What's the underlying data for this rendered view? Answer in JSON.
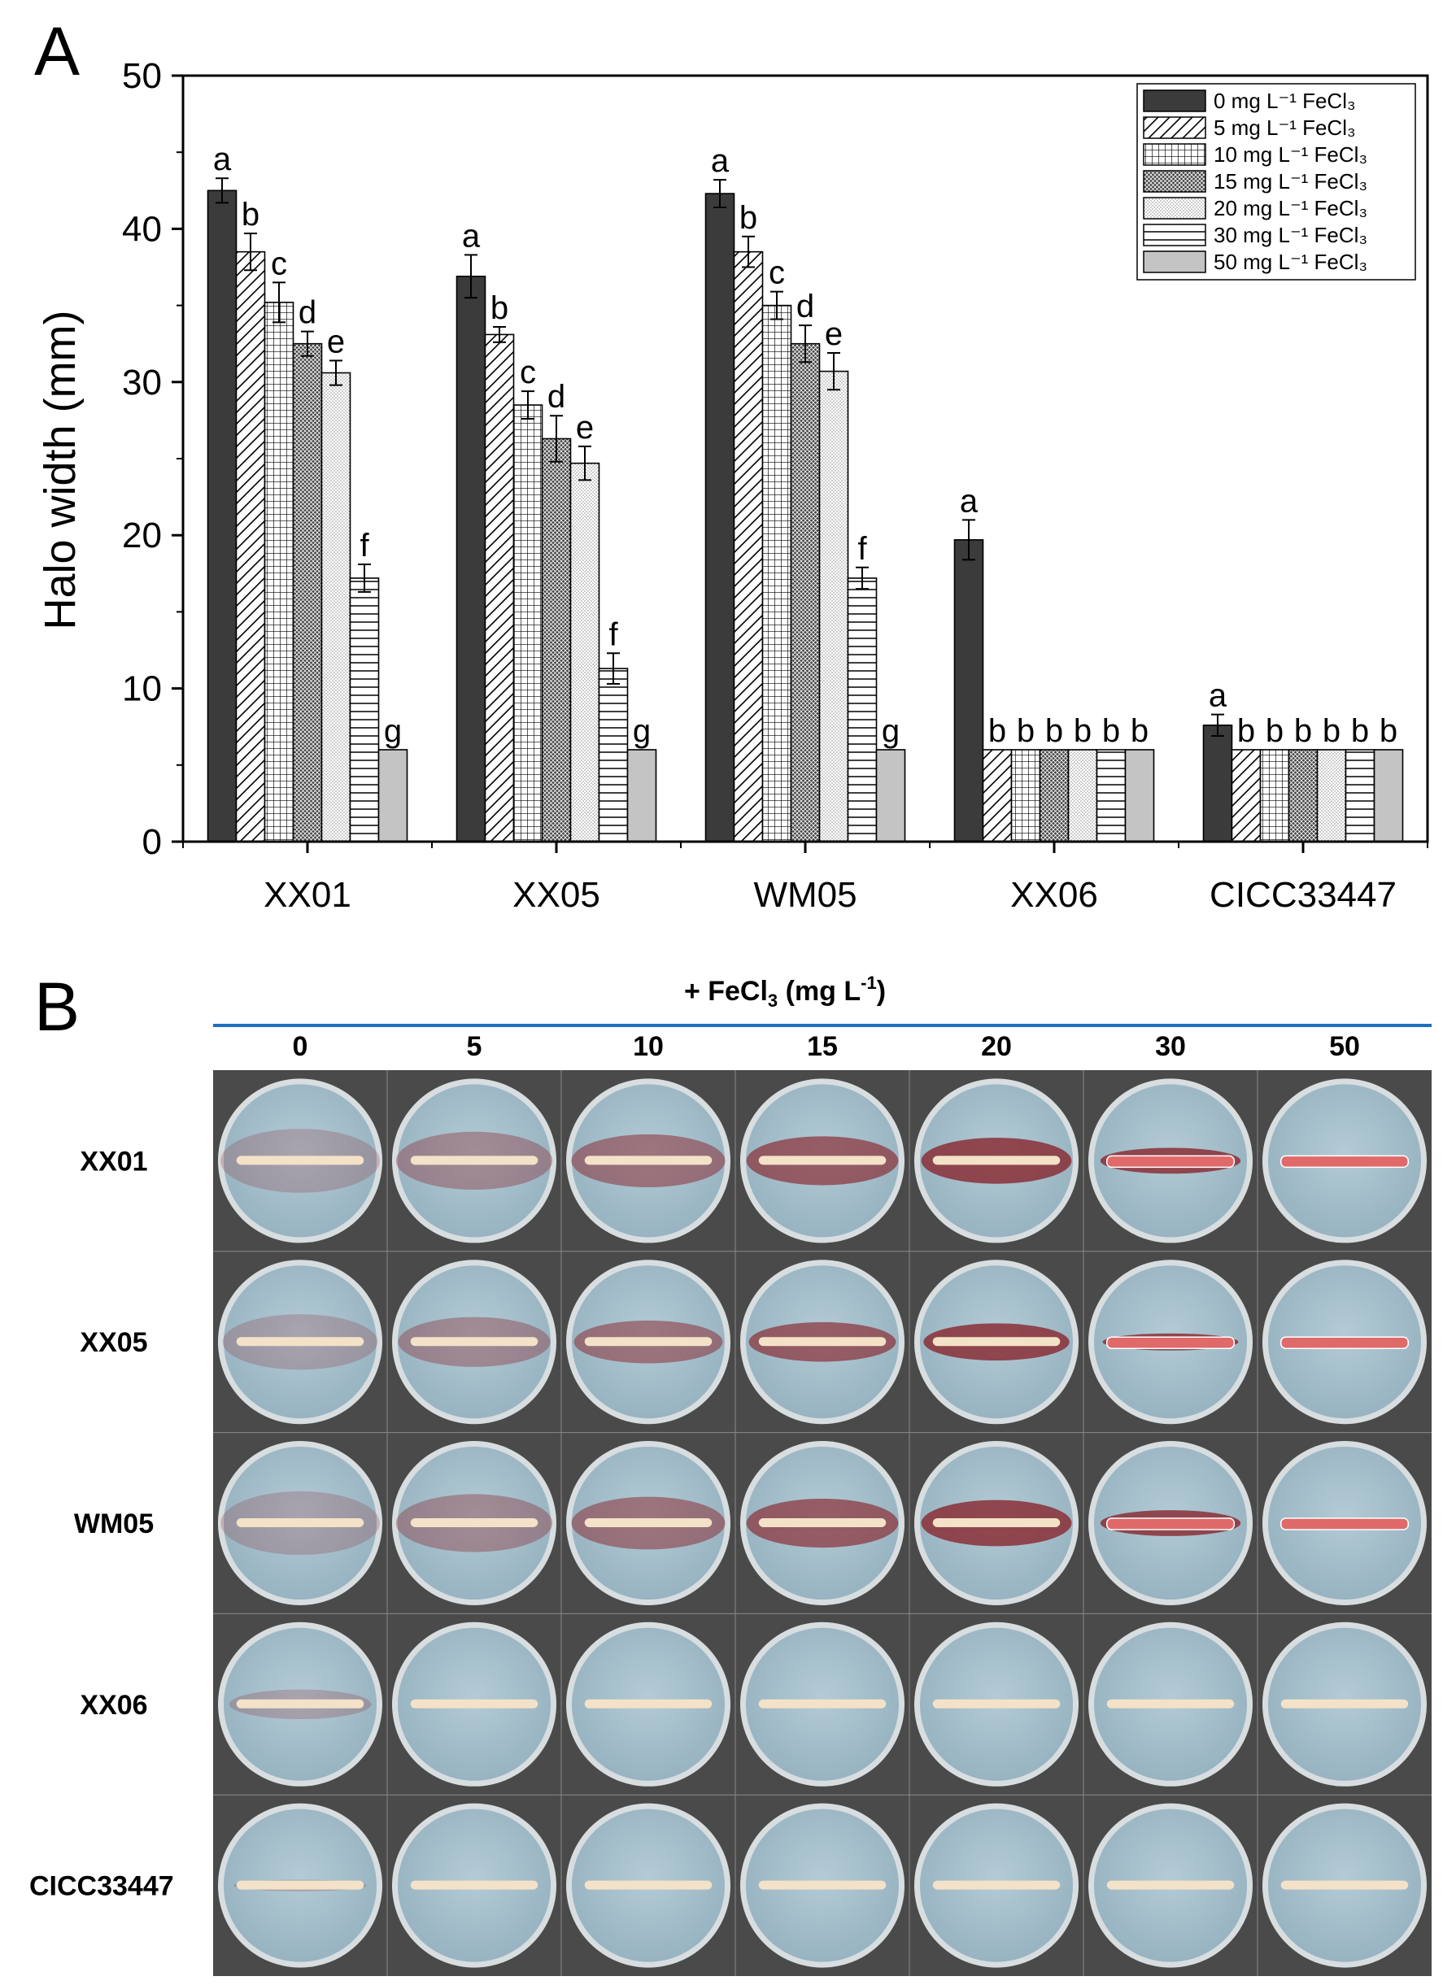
{
  "panel_a": {
    "label": "A",
    "chart_data": {
      "type": "bar",
      "ylabel": "Halo width (mm)",
      "xlabel": "",
      "ylim": [
        0,
        50
      ],
      "yticks": [
        "0",
        "10",
        "20",
        "30",
        "40",
        "50"
      ],
      "categories": [
        "XX01",
        "XX05",
        "WM05",
        "XX06",
        "CICC33447"
      ],
      "legend_position": "top-right",
      "series": [
        {
          "name": "0 mg L⁻¹ FeCl₃",
          "conc": "0",
          "pattern": "solid-dark",
          "values": [
            42.5,
            36.9,
            42.3,
            19.7,
            7.6
          ],
          "errors": [
            0.8,
            1.4,
            0.9,
            1.3,
            0.7
          ],
          "letters": [
            "a",
            "a",
            "a",
            "a",
            "a"
          ]
        },
        {
          "name": "5 mg L⁻¹ FeCl₃",
          "conc": "5",
          "pattern": "diagonal",
          "values": [
            38.5,
            33.1,
            38.5,
            6.0,
            6.0
          ],
          "errors": [
            1.2,
            0.5,
            1.0,
            0,
            0
          ],
          "letters": [
            "b",
            "b",
            "b",
            "b",
            "b"
          ]
        },
        {
          "name": "10 mg L⁻¹ FeCl₃",
          "conc": "10",
          "pattern": "grid",
          "values": [
            35.2,
            28.5,
            35.0,
            6.0,
            6.0
          ],
          "errors": [
            1.3,
            0.9,
            0.9,
            0,
            0
          ],
          "letters": [
            "c",
            "c",
            "c",
            "b",
            "b"
          ]
        },
        {
          "name": "15 mg L⁻¹ FeCl₃",
          "conc": "15",
          "pattern": "crosshatch",
          "values": [
            32.5,
            26.3,
            32.5,
            6.0,
            6.0
          ],
          "errors": [
            0.8,
            1.5,
            1.2,
            0,
            0
          ],
          "letters": [
            "d",
            "d",
            "d",
            "b",
            "b"
          ]
        },
        {
          "name": "20 mg L⁻¹ FeCl₃",
          "conc": "20",
          "pattern": "dots",
          "values": [
            30.6,
            24.7,
            30.7,
            6.0,
            6.0
          ],
          "errors": [
            0.8,
            1.1,
            1.2,
            0,
            0
          ],
          "letters": [
            "e",
            "e",
            "e",
            "b",
            "b"
          ]
        },
        {
          "name": "30 mg L⁻¹ FeCl₃",
          "conc": "30",
          "pattern": "horizontal",
          "values": [
            17.2,
            11.3,
            17.2,
            6.0,
            6.0
          ],
          "errors": [
            0.9,
            1.0,
            0.7,
            0,
            0
          ],
          "letters": [
            "f",
            "f",
            "f",
            "b",
            "b"
          ]
        },
        {
          "name": "50 mg L⁻¹ FeCl₃",
          "conc": "50",
          "pattern": "solid-light",
          "values": [
            6.0,
            6.0,
            6.0,
            6.0,
            6.0
          ],
          "errors": [
            0,
            0,
            0,
            0,
            0
          ],
          "letters": [
            "g",
            "g",
            "g",
            "b",
            "b"
          ]
        }
      ]
    }
  },
  "panel_b": {
    "label": "B",
    "header_prefix": "+ FeCl",
    "header_sub": "3",
    "header_unit": " (mg L",
    "header_sup": "-1",
    "header_close": ")",
    "columns": [
      "0",
      "5",
      "10",
      "15",
      "20",
      "30",
      "50"
    ],
    "rows": [
      "XX01",
      "XX05",
      "WM05",
      "XX06",
      "CICC33447"
    ],
    "halo_width_mm": [
      [
        42.5,
        38.5,
        35.2,
        32.5,
        30.6,
        17.2,
        6.0
      ],
      [
        36.9,
        33.1,
        28.5,
        26.3,
        24.7,
        11.3,
        6.0
      ],
      [
        42.3,
        38.5,
        35.0,
        32.5,
        30.7,
        17.2,
        6.0
      ],
      [
        19.7,
        6.0,
        6.0,
        6.0,
        6.0,
        6.0,
        6.0
      ],
      [
        7.6,
        6.0,
        6.0,
        6.0,
        6.0,
        6.0,
        6.0
      ]
    ],
    "colors": {
      "background": "#4a4a4a",
      "agar": "#a9c3d0",
      "plate_rim": "#d8dde0",
      "halo": "#8a2f36",
      "colony": "#f3e2c8",
      "colony_red": "#e06a6a",
      "accent_line": "#1f6fc1"
    }
  }
}
